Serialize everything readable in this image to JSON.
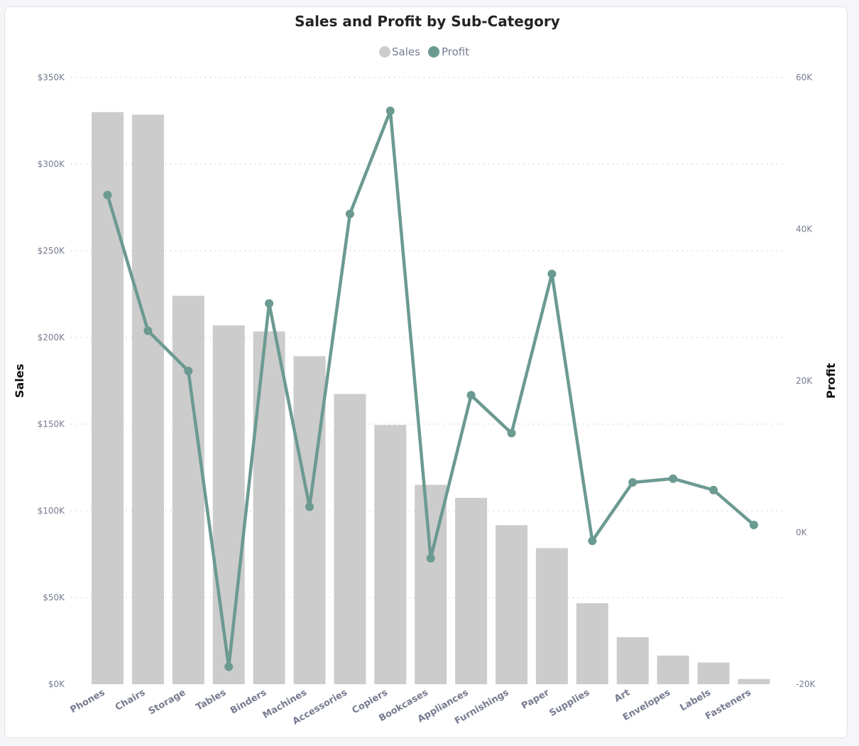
{
  "chart_data": {
    "type": "bar",
    "title": "Sales and Profit by Sub-Category",
    "categories": [
      "Phones",
      "Chairs",
      "Storage",
      "Tables",
      "Binders",
      "Machines",
      "Accessories",
      "Copiers",
      "Bookcases",
      "Appliances",
      "Furnishings",
      "Paper",
      "Supplies",
      "Art",
      "Envelopes",
      "Labels",
      "Fasteners"
    ],
    "series": [
      {
        "name": "Sales",
        "type": "bar",
        "axis": "left",
        "color": "#cccccc",
        "values": [
          330000,
          328500,
          224000,
          207000,
          203500,
          189200,
          167400,
          149500,
          115000,
          107500,
          91700,
          78500,
          46700,
          27100,
          16500,
          12500,
          3000
        ]
      },
      {
        "name": "Profit",
        "type": "line",
        "axis": "right",
        "color": "#6b9a91",
        "values": [
          44500,
          26600,
          21300,
          -17700,
          30200,
          3400,
          42000,
          55600,
          -3400,
          18100,
          13100,
          34100,
          -1100,
          6600,
          7100,
          5600,
          1000
        ]
      }
    ],
    "y_left": {
      "label": "Sales",
      "ylim": [
        0,
        350000
      ],
      "ticks": [
        0,
        50000,
        100000,
        150000,
        200000,
        250000,
        300000,
        350000
      ],
      "tick_labels": [
        "$0K",
        "$50K",
        "$100K",
        "$150K",
        "$200K",
        "$250K",
        "$300K",
        "$350K"
      ]
    },
    "y_right": {
      "label": "Profit",
      "ylim": [
        -20000,
        60000
      ],
      "ticks": [
        -20000,
        0,
        20000,
        40000,
        60000
      ],
      "tick_labels": [
        "-20K",
        "0K",
        "20K",
        "40K",
        "60K"
      ]
    },
    "legend": {
      "position": "top-center",
      "entries": [
        "Sales",
        "Profit"
      ]
    },
    "grid": true
  }
}
